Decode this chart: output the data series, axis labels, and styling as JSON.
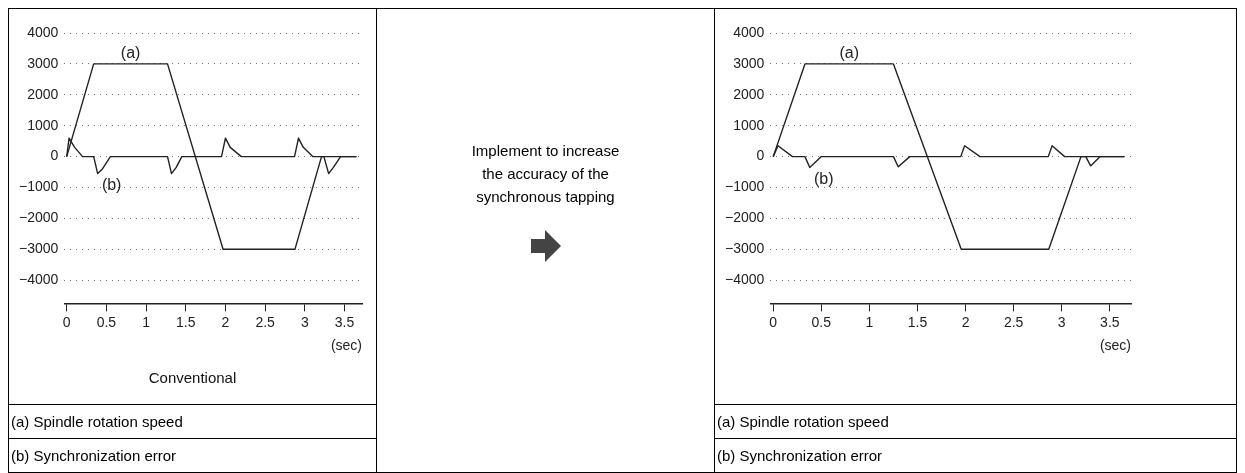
{
  "chart_data": [
    {
      "type": "line",
      "title": "Conventional",
      "xlabel": "(sec)",
      "grid": "y",
      "xlim": [
        -0.03,
        3.72
      ],
      "ylim": [
        -4750,
        4000
      ],
      "xticks": [
        0,
        0.5,
        1,
        1.5,
        2,
        2.5,
        3,
        3.5
      ],
      "yticks": [
        -4000,
        -3000,
        -2000,
        -1000,
        0,
        1000,
        2000,
        3000,
        4000
      ],
      "annotations": [
        "Implement to increase the accuracy of the synchronous tapping",
        "(a) Spindle rotation speed",
        "(b) Synchronization error"
      ],
      "series": [
        {
          "name": "(a)",
          "color": "#222222",
          "x": [
            0,
            0.34,
            1.27,
            1.97,
            2.875,
            3.21,
            3.65
          ],
          "values": [
            0,
            3000,
            3000,
            -3000,
            -3000,
            0,
            0
          ]
        },
        {
          "name": "(b)",
          "color": "#222222",
          "x": [
            0,
            0.03,
            0.1,
            0.2,
            0.34,
            0.39,
            0.45,
            0.55,
            1.27,
            1.32,
            1.38,
            1.45,
            1.95,
            2.0,
            2.06,
            2.2,
            2.87,
            2.92,
            2.98,
            3.1,
            3.24,
            3.3,
            3.36,
            3.45,
            3.65
          ],
          "values": [
            0,
            600,
            300,
            0,
            0,
            -550,
            -400,
            0,
            0,
            -550,
            -350,
            0,
            0,
            600,
            300,
            0,
            0,
            600,
            300,
            0,
            0,
            -550,
            -350,
            0,
            0
          ]
        }
      ]
    },
    {
      "type": "line",
      "xlabel": "(sec)",
      "grid": "y",
      "xlim": [
        -0.03,
        3.72
      ],
      "ylim": [
        -4750,
        4000
      ],
      "xticks": [
        0,
        0.5,
        1,
        1.5,
        2,
        2.5,
        3,
        3.5
      ],
      "yticks": [
        -4000,
        -3000,
        -2000,
        -1000,
        0,
        1000,
        2000,
        3000,
        4000
      ],
      "annotations": [
        "(a) Spindle rotation speed",
        "(b) Synchronization error"
      ],
      "series": [
        {
          "name": "(a)",
          "color": "#222222",
          "x": [
            0,
            0.33,
            1.25,
            1.955,
            2.865,
            3.2,
            3.65
          ],
          "values": [
            0,
            3000,
            3000,
            -3000,
            -3000,
            0,
            0
          ]
        },
        {
          "name": "(b)",
          "color": "#222222",
          "x": [
            0,
            0.05,
            0.2,
            0.33,
            0.38,
            0.5,
            1.25,
            1.3,
            1.42,
            1.95,
            1.99,
            2.15,
            2.86,
            2.9,
            3.03,
            3.25,
            3.3,
            3.4,
            3.65
          ],
          "values": [
            0,
            350,
            0,
            0,
            -350,
            0,
            0,
            -330,
            0,
            0,
            350,
            0,
            0,
            350,
            0,
            0,
            -300,
            0,
            0
          ]
        }
      ]
    }
  ]
}
